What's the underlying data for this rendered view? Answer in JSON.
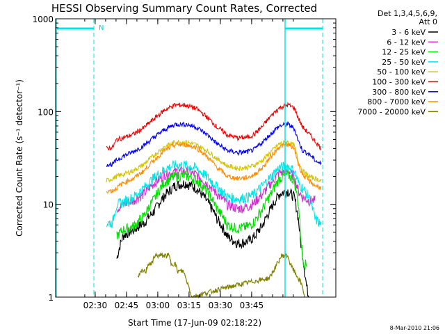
{
  "chart_data": {
    "type": "line",
    "title": "HESSI Observing Summary Count Rates, Corrected",
    "xlabel": "Start Time (17-Jun-09 02:18:22)",
    "ylabel": "Corrected Count Rate (s⁻¹ detector⁻¹)",
    "y_scale": "log",
    "ylim": [
      1,
      1000
    ],
    "y_tick_labels": [
      "1",
      "10",
      "100",
      "1000"
    ],
    "x_tick_labels": [
      "02:30",
      "02:45",
      "03:00",
      "03:15",
      "03:30",
      "03:45"
    ],
    "legend_header": [
      "Det 1,3,4,5,6,9,",
      "Att 0"
    ],
    "footer": "8-Mar-2010 21:06",
    "night_marker": "N",
    "series": [
      {
        "name": "3 - 6 keV",
        "color": "#000000",
        "values": [
          [
            22,
            2.6
          ],
          [
            25,
            4.6
          ],
          [
            30,
            5.3
          ],
          [
            35,
            6.3
          ],
          [
            40,
            8.5
          ],
          [
            45,
            12.5
          ],
          [
            50,
            16
          ],
          [
            55,
            17
          ],
          [
            60,
            15
          ],
          [
            65,
            11
          ],
          [
            70,
            7
          ],
          [
            75,
            4.5
          ],
          [
            80,
            3.8
          ],
          [
            85,
            4
          ],
          [
            88,
            4.5
          ],
          [
            92,
            6
          ],
          [
            96,
            9
          ],
          [
            100,
            13
          ],
          [
            104,
            14
          ],
          [
            107,
            12
          ],
          [
            109,
            7
          ],
          [
            110,
            4
          ],
          [
            112,
            1.9
          ],
          [
            113,
            1.3
          ],
          [
            114,
            1
          ]
        ]
      },
      {
        "name": "6 - 12 keV",
        "color": "#cc33cc",
        "values": [
          [
            22,
            9
          ],
          [
            25,
            10
          ],
          [
            30,
            11
          ],
          [
            35,
            13
          ],
          [
            40,
            17
          ],
          [
            45,
            21
          ],
          [
            50,
            22.5
          ],
          [
            55,
            22.5
          ],
          [
            60,
            21
          ],
          [
            65,
            17
          ],
          [
            70,
            13
          ],
          [
            75,
            10
          ],
          [
            80,
            9
          ],
          [
            85,
            9.5
          ],
          [
            88,
            10.5
          ],
          [
            92,
            13
          ],
          [
            96,
            17
          ],
          [
            100,
            22
          ],
          [
            104,
            23
          ],
          [
            107,
            20
          ],
          [
            109,
            14
          ],
          [
            111,
            12
          ],
          [
            114,
            11
          ],
          [
            117,
            11
          ]
        ]
      },
      {
        "name": "12 - 25 keV",
        "color": "#00e000",
        "values": [
          [
            22,
            4.6
          ],
          [
            25,
            5.3
          ],
          [
            30,
            5.8
          ],
          [
            35,
            7.5
          ],
          [
            40,
            11.5
          ],
          [
            45,
            17.5
          ],
          [
            50,
            20
          ],
          [
            55,
            20.5
          ],
          [
            60,
            18.5
          ],
          [
            65,
            14
          ],
          [
            70,
            9
          ],
          [
            75,
            6
          ],
          [
            80,
            5.5
          ],
          [
            85,
            5.8
          ],
          [
            88,
            6.5
          ],
          [
            92,
            9
          ],
          [
            96,
            13
          ],
          [
            100,
            19
          ],
          [
            104,
            21
          ],
          [
            107,
            18
          ],
          [
            109,
            10
          ],
          [
            110,
            5
          ],
          [
            111,
            2.7
          ],
          [
            112,
            2.3
          ],
          [
            113,
            2.2
          ]
        ]
      },
      {
        "name": "25 - 50 keV",
        "color": "#00e6e6",
        "values": [
          [
            17,
            6.2
          ],
          [
            20,
            6.4
          ],
          [
            22,
            10
          ],
          [
            25,
            10.5
          ],
          [
            30,
            12
          ],
          [
            35,
            15
          ],
          [
            40,
            19.5
          ],
          [
            45,
            24
          ],
          [
            50,
            26.5
          ],
          [
            55,
            26.5
          ],
          [
            60,
            24.5
          ],
          [
            65,
            20
          ],
          [
            70,
            15.5
          ],
          [
            75,
            12
          ],
          [
            80,
            11.5
          ],
          [
            85,
            12
          ],
          [
            88,
            13
          ],
          [
            92,
            16
          ],
          [
            96,
            20
          ],
          [
            100,
            25
          ],
          [
            104,
            26
          ],
          [
            107,
            23
          ],
          [
            109,
            17
          ],
          [
            111,
            15
          ],
          [
            114,
            12
          ],
          [
            117,
            7
          ],
          [
            120,
            6
          ]
        ]
      },
      {
        "name": "50 - 100 keV",
        "color": "#d4c400",
        "values": [
          [
            17,
            18
          ],
          [
            20,
            19
          ],
          [
            22,
            20
          ],
          [
            25,
            21
          ],
          [
            30,
            23
          ],
          [
            35,
            27
          ],
          [
            40,
            34
          ],
          [
            45,
            42
          ],
          [
            50,
            47
          ],
          [
            55,
            47
          ],
          [
            60,
            44
          ],
          [
            65,
            38
          ],
          [
            70,
            31
          ],
          [
            75,
            26
          ],
          [
            80,
            24.5
          ],
          [
            85,
            25
          ],
          [
            88,
            26.5
          ],
          [
            92,
            30
          ],
          [
            96,
            37
          ],
          [
            100,
            45
          ],
          [
            104,
            47
          ],
          [
            107,
            43
          ],
          [
            109,
            29
          ],
          [
            111,
            23
          ],
          [
            114,
            20
          ],
          [
            117,
            19
          ],
          [
            120,
            18
          ]
        ]
      },
      {
        "name": "100 - 300 keV",
        "color": "#ee0000",
        "values": [
          [
            17,
            40
          ],
          [
            20,
            41
          ],
          [
            22,
            50
          ],
          [
            25,
            52
          ],
          [
            30,
            57
          ],
          [
            35,
            67
          ],
          [
            40,
            84
          ],
          [
            45,
            104
          ],
          [
            50,
            118
          ],
          [
            55,
            117
          ],
          [
            60,
            108
          ],
          [
            65,
            88
          ],
          [
            70,
            68
          ],
          [
            75,
            56
          ],
          [
            80,
            52
          ],
          [
            85,
            53
          ],
          [
            88,
            57
          ],
          [
            92,
            70
          ],
          [
            96,
            90
          ],
          [
            100,
            110
          ],
          [
            104,
            118
          ],
          [
            107,
            110
          ],
          [
            109,
            85
          ],
          [
            111,
            68
          ],
          [
            114,
            58
          ],
          [
            117,
            48
          ],
          [
            120,
            40
          ]
        ]
      },
      {
        "name": "300 - 800 keV",
        "color": "#0000ee",
        "values": [
          [
            17,
            27
          ],
          [
            20,
            27
          ],
          [
            22,
            30
          ],
          [
            25,
            33
          ],
          [
            30,
            37
          ],
          [
            35,
            43
          ],
          [
            40,
            53
          ],
          [
            45,
            64
          ],
          [
            50,
            73
          ],
          [
            55,
            73
          ],
          [
            60,
            68
          ],
          [
            65,
            57
          ],
          [
            70,
            45
          ],
          [
            75,
            38
          ],
          [
            80,
            36
          ],
          [
            85,
            37
          ],
          [
            88,
            39
          ],
          [
            92,
            47
          ],
          [
            96,
            58
          ],
          [
            100,
            70
          ],
          [
            104,
            73
          ],
          [
            107,
            66
          ],
          [
            109,
            48
          ],
          [
            111,
            38
          ],
          [
            114,
            35
          ],
          [
            117,
            30
          ],
          [
            120,
            27
          ]
        ]
      },
      {
        "name": "800 - 7000 keV",
        "color": "#ff8c00",
        "values": [
          [
            17,
            14
          ],
          [
            20,
            14
          ],
          [
            22,
            15
          ],
          [
            25,
            17
          ],
          [
            30,
            19
          ],
          [
            35,
            23
          ],
          [
            40,
            30
          ],
          [
            45,
            38
          ],
          [
            50,
            44
          ],
          [
            55,
            44
          ],
          [
            60,
            41
          ],
          [
            65,
            33
          ],
          [
            70,
            25
          ],
          [
            75,
            20
          ],
          [
            80,
            19
          ],
          [
            85,
            19.5
          ],
          [
            88,
            21
          ],
          [
            92,
            25
          ],
          [
            96,
            33
          ],
          [
            100,
            42
          ],
          [
            104,
            44
          ],
          [
            107,
            40
          ],
          [
            109,
            27
          ],
          [
            111,
            21
          ],
          [
            114,
            18
          ],
          [
            117,
            16
          ],
          [
            120,
            15
          ]
        ]
      },
      {
        "name": "7000 - 20000 keV",
        "color": "#808000",
        "values": [
          [
            32,
            1.6
          ],
          [
            34,
            1.9
          ],
          [
            36,
            1.9
          ],
          [
            37,
            2.3
          ],
          [
            39,
            2.3
          ],
          [
            40,
            2.8
          ],
          [
            47,
            2.8
          ],
          [
            48,
            2.3
          ],
          [
            50,
            2.3
          ],
          [
            51,
            1.9
          ],
          [
            54,
            1.9
          ],
          [
            55,
            1.6
          ],
          [
            57,
            1.2
          ],
          [
            58,
            1
          ],
          [
            95,
            1.6
          ],
          [
            97,
            1.9
          ],
          [
            99,
            2.3
          ],
          [
            101,
            2.8
          ],
          [
            104,
            2.8
          ],
          [
            105,
            2.3
          ],
          [
            107,
            1.9
          ],
          [
            109,
            1.6
          ],
          [
            111,
            1.3
          ],
          [
            112,
            1
          ]
        ]
      }
    ]
  }
}
